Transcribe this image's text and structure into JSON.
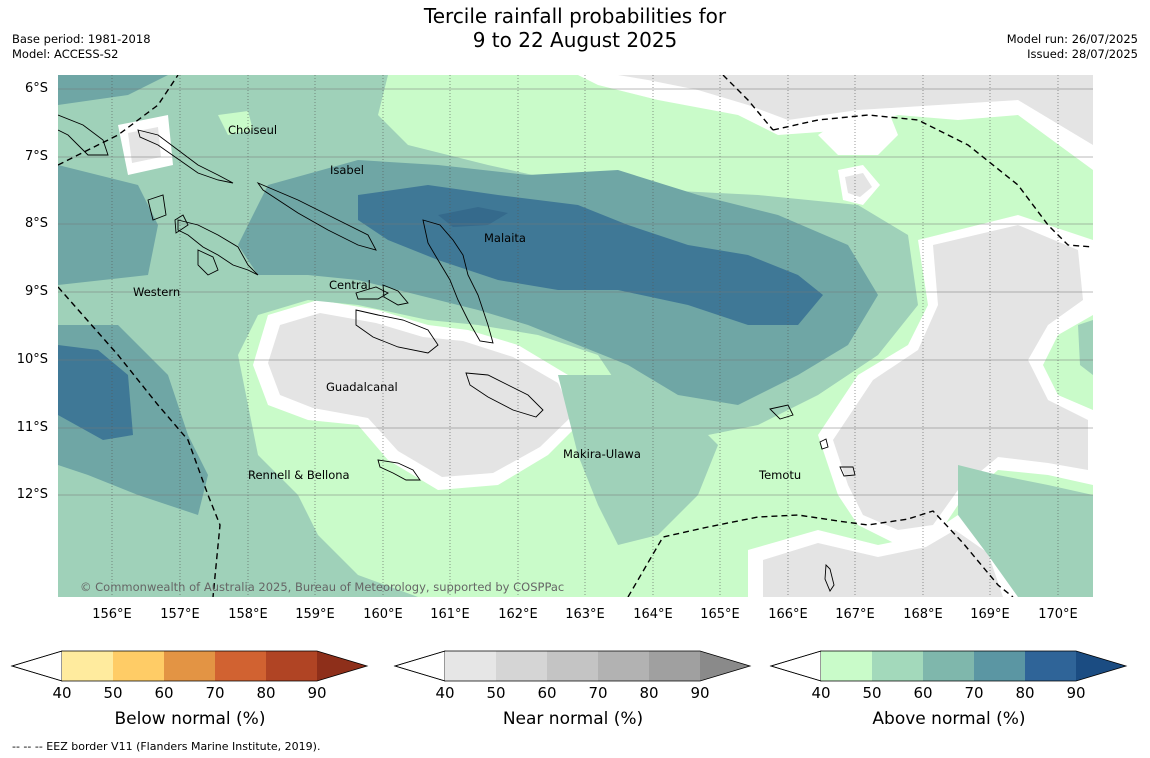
{
  "header": {
    "title_line1": "Tercile rainfall probabilities for",
    "title_line2": "9 to 22 August 2025",
    "base_period": "Base period: 1981-2018",
    "model": "Model: ACCESS-S2",
    "model_run": "Model run: 26/07/2025",
    "issued": "Issued: 28/07/2025"
  },
  "map": {
    "lat_labels": [
      "6°S",
      "7°S",
      "8°S",
      "9°S",
      "10°S",
      "11°S",
      "12°S"
    ],
    "lon_labels": [
      "156°E",
      "157°E",
      "158°E",
      "159°E",
      "160°E",
      "161°E",
      "162°E",
      "163°E",
      "164°E",
      "165°E",
      "166°E",
      "167°E",
      "168°E",
      "169°E",
      "170°E"
    ],
    "places": {
      "choiseul": "Choiseul",
      "isabel": "Isabel",
      "malaita": "Malaita",
      "western": "Western",
      "central": "Central",
      "guadalcanal": "Guadalcanal",
      "rennell": "Rennell & Bellona",
      "makira": "Makira-Ulawa",
      "temotu": "Temotu"
    },
    "copyright": "© Commonwealth of Australia 2025, Bureau of Meteorology, supported by COSPPac",
    "colors": {
      "above_50": "#c9fbc9",
      "above_60": "#9fd1b9",
      "above_70": "#6fa6a5",
      "above_80": "#3f7896",
      "near_40": "#e4e4e4",
      "background": "#ffffff"
    }
  },
  "colorbars": [
    {
      "title": "Below normal (%)",
      "ticks": [
        "40",
        "50",
        "60",
        "70",
        "80",
        "90"
      ],
      "colors": [
        "#ffeb9e",
        "#ffcc66",
        "#e39444",
        "#d16231",
        "#b04424",
        "#8e2f1a"
      ]
    },
    {
      "title": "Near normal (%)",
      "ticks": [
        "40",
        "50",
        "60",
        "70",
        "80",
        "90"
      ],
      "colors": [
        "#e6e6e6",
        "#d5d5d5",
        "#c4c4c4",
        "#b2b2b2",
        "#a0a0a0",
        "#8a8a8a"
      ]
    },
    {
      "title": "Above normal (%)",
      "ticks": [
        "40",
        "50",
        "60",
        "70",
        "80",
        "90"
      ],
      "colors": [
        "#c9fbc9",
        "#a3d9bb",
        "#7fb7ac",
        "#5b96a3",
        "#2f6498",
        "#1b4c82"
      ]
    }
  ],
  "footer": {
    "eez_legend": "--  --  -- EEZ border V11 (Flanders Marine Institute, 2019)."
  }
}
